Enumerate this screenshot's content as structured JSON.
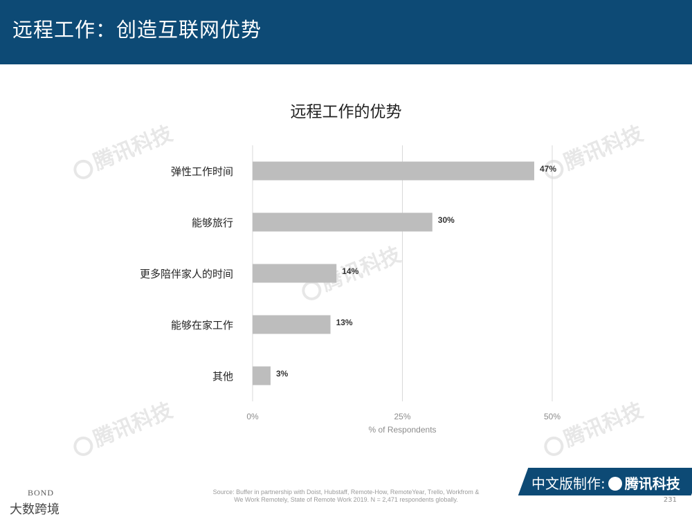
{
  "header": {
    "title": "远程工作：创造互联网优势"
  },
  "watermark": {
    "text": "腾讯科技"
  },
  "chart_data": {
    "type": "bar",
    "orientation": "horizontal",
    "title": "远程工作的优势",
    "xlabel": "% of Respondents",
    "ylabel": "",
    "xlim": [
      0,
      50
    ],
    "xticks": [
      {
        "value": 0,
        "label": "0%"
      },
      {
        "value": 25,
        "label": "25%"
      },
      {
        "value": 50,
        "label": "50%"
      }
    ],
    "grid": "vertical",
    "bar_color": "#bdbdbd",
    "categories": [
      "弹性工作时间",
      "能够旅行",
      "更多陪伴家人的时间",
      "能够在家工作",
      "其他"
    ],
    "values": [
      47,
      30,
      14,
      13,
      3
    ],
    "value_labels": [
      "47%",
      "30%",
      "14%",
      "13%",
      "3%"
    ]
  },
  "footer": {
    "source_line1": "Source: Buffer in partnership with Doist, Hubstaff, Remote-How, RemoteYear, Trello, Workfrom &",
    "source_line2": "We Work Remotely, State of Remote Work 2019. N = 2,471 respondents globally.",
    "brand_prefix": "中文版制作:",
    "brand_name": "腾讯科技",
    "page_number": "231",
    "bond_text": "BOND",
    "bond_sub": "大数跨境"
  },
  "colors": {
    "header_bg": "#0d4a75",
    "bar": "#bdbdbd",
    "grid": "#d9d9d9"
  }
}
